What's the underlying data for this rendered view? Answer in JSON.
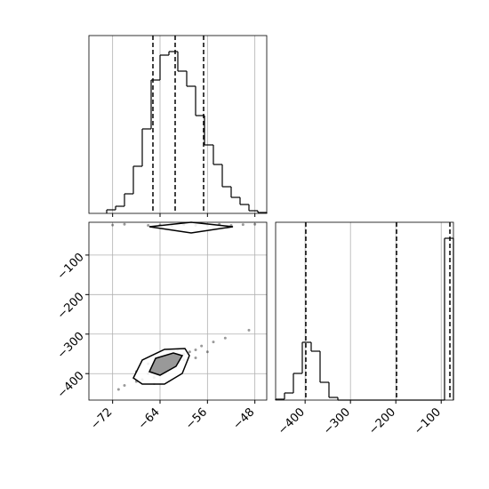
{
  "chart_data": [
    {
      "type": "histogram",
      "color": "#000000",
      "bins": [
        -73,
        -71.5,
        -70,
        -68.5,
        -67,
        -65.5,
        -64,
        -62.5,
        -61,
        -59.5,
        -58,
        -56.5,
        -55,
        -53.5,
        -52,
        -50.5,
        -49,
        -47.5,
        -46
      ],
      "values": [
        4,
        8,
        22,
        53,
        95,
        150,
        178,
        182,
        160,
        143,
        110,
        77,
        55,
        30,
        18,
        10,
        3,
        1
      ],
      "xlim": [
        -76,
        -46
      ],
      "ylim": [
        0,
        200
      ],
      "quantiles": [
        -65.2,
        -61.45,
        -56.65
      ]
    },
    {
      "type": "scatter",
      "color": "#000000",
      "x": [
        -68,
        -66,
        -64,
        -62,
        -60,
        -58,
        -65,
        -61,
        -70,
        -63,
        -59,
        -57,
        -67,
        -62,
        -55,
        -64,
        -66,
        -60,
        -71,
        -56,
        -68,
        -61,
        -65,
        -58,
        -53,
        -49,
        -70,
        -66,
        -64,
        -62,
        -60,
        -58,
        -56,
        -54,
        -52,
        -50,
        -72,
        -48
      ],
      "y": [
        -420,
        -400,
        -380,
        -370,
        -350,
        -340,
        -410,
        -360,
        -430,
        -395,
        -345,
        -330,
        -415,
        -385,
        -320,
        -390,
        -375,
        -365,
        -440,
        -345,
        -395,
        -340,
        -425,
        -360,
        -310,
        -290,
        -22,
        -25,
        -24,
        -26,
        -23,
        -25,
        -24,
        -22,
        -25,
        -23,
        -24,
        -22
      ],
      "contours": [
        {
          "x": [
            -68.5,
            -67,
            -63.25,
            -60.25,
            -59.05,
            -59.8,
            -63.25,
            -67
          ],
          "y": [
            -411,
            -426.5,
            -426.5,
            -399.5,
            -354.5,
            -336.5,
            -338.75,
            -365.75
          ]
        },
        {
          "x": [
            -65.8,
            -64,
            -61.3,
            -60.25,
            -61.75,
            -64.75
          ],
          "y": [
            -395,
            -404,
            -381.5,
            -354.5,
            -347.75,
            -361.25
          ]
        },
        {
          "x": [
            -65.8,
            -58.75,
            -51.7,
            -58.75
          ],
          "y": [
            -28.25,
            -44,
            -28.25,
            -17
          ]
        }
      ],
      "xlim": [
        -76,
        -46
      ],
      "ylim": [
        -467,
        -17
      ],
      "xticks": [
        {
          "value": -72,
          "label": "−72"
        },
        {
          "value": -64,
          "label": "−64"
        },
        {
          "value": -56,
          "label": "−56"
        },
        {
          "value": -48,
          "label": "−48"
        }
      ],
      "yticks": [
        {
          "value": -100,
          "label": "−100"
        },
        {
          "value": -200,
          "label": "−200"
        },
        {
          "value": -300,
          "label": "−300"
        },
        {
          "value": -400,
          "label": "−400"
        }
      ],
      "grid": true
    },
    {
      "type": "histogram",
      "color": "#000000",
      "bins": [
        -465,
        -445.4,
        -425.8,
        -406.2,
        -386.6,
        -367,
        -347.4,
        -327.8,
        -308.2,
        -288.6,
        -269,
        -249.4,
        -229.8,
        -210.2,
        -190.6,
        -171,
        -151.4,
        -131.8,
        -112.2,
        -92.6,
        -73
      ],
      "values": [
        1,
        8,
        30,
        65,
        55,
        20,
        3,
        0,
        0,
        0,
        0,
        0,
        0,
        0,
        0,
        0,
        0,
        0,
        0,
        182
      ],
      "xlim": [
        -465,
        -73
      ],
      "ylim": [
        0,
        200
      ],
      "quantiles": [
        -398.4,
        -198.4,
        -80.8
      ],
      "xticks": [
        {
          "value": -400,
          "label": "−400"
        },
        {
          "value": -300,
          "label": "−300"
        },
        {
          "value": -200,
          "label": "−200"
        },
        {
          "value": -100,
          "label": "−100"
        }
      ],
      "grid": true
    }
  ]
}
